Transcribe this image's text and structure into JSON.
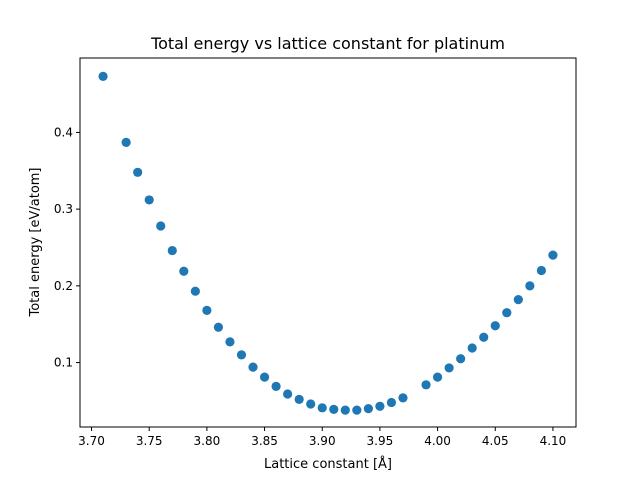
{
  "chart_data": {
    "type": "scatter",
    "title": "Total energy vs lattice constant for platinum",
    "xlabel": "Lattice constant [Å]",
    "ylabel": "Total energy [eV/atom]",
    "xlim": [
      3.69,
      4.12
    ],
    "ylim": [
      0.016,
      0.497
    ],
    "xticks": [
      3.7,
      3.75,
      3.8,
      3.85,
      3.9,
      3.95,
      4.0,
      4.05,
      4.1
    ],
    "xtick_labels": [
      "3.70",
      "3.75",
      "3.80",
      "3.85",
      "3.90",
      "3.95",
      "4.00",
      "4.05",
      "4.10"
    ],
    "yticks": [
      0.1,
      0.2,
      0.3,
      0.4
    ],
    "ytick_labels": [
      "0.1",
      "0.2",
      "0.3",
      "0.4"
    ],
    "grid": false,
    "marker_color": "#1f77b4",
    "series": [
      {
        "x": [
          3.71,
          3.73,
          3.74,
          3.75,
          3.76,
          3.77,
          3.78,
          3.79,
          3.8,
          3.81,
          3.82,
          3.83,
          3.84,
          3.85,
          3.86,
          3.87,
          3.88,
          3.89,
          3.9,
          3.91,
          3.92,
          3.93,
          3.94,
          3.95,
          3.96,
          3.97,
          3.99,
          4.0,
          4.01,
          4.02,
          4.03,
          4.04,
          4.05,
          4.06,
          4.07,
          4.08,
          4.09,
          4.1
        ],
        "y": [
          0.473,
          0.387,
          0.348,
          0.312,
          0.278,
          0.246,
          0.219,
          0.193,
          0.168,
          0.146,
          0.127,
          0.11,
          0.094,
          0.081,
          0.069,
          0.059,
          0.052,
          0.046,
          0.041,
          0.039,
          0.038,
          0.038,
          0.04,
          0.043,
          0.048,
          0.054,
          0.071,
          0.081,
          0.093,
          0.105,
          0.119,
          0.133,
          0.148,
          0.165,
          0.182,
          0.2,
          0.22,
          0.24
        ]
      }
    ]
  }
}
